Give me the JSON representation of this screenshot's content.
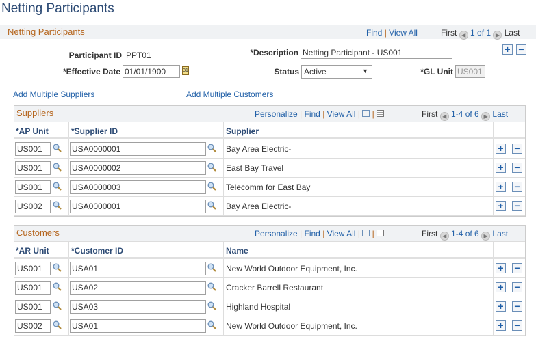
{
  "page_title": "Netting Participants",
  "header": {
    "section": "Netting Participants",
    "find": "Find",
    "view_all": "View All",
    "first": "First",
    "count": "1 of 1",
    "last": "Last"
  },
  "form": {
    "participant_id_label": "Participant ID",
    "participant_id": "PPT01",
    "description_label": "*Description",
    "description": "Netting Participant - US001",
    "effective_date_label": "*Effective Date",
    "effective_date": "01/01/1900",
    "status_label": "Status",
    "status": "Active",
    "gl_unit_label": "*GL Unit",
    "gl_unit": "US001"
  },
  "links": {
    "add_suppliers": "Add Multiple Suppliers",
    "add_customers": "Add Multiple Customers"
  },
  "suppliers": {
    "title": "Suppliers",
    "personalize": "Personalize",
    "find": "Find",
    "view_all": "View All",
    "first": "First",
    "count": "1-4 of 6",
    "last": "Last",
    "columns": [
      "*AP Unit",
      "*Supplier ID",
      "Supplier"
    ],
    "rows": [
      [
        "US001",
        "USA0000001",
        "Bay Area Electric-"
      ],
      [
        "US001",
        "USA0000002",
        "East Bay Travel"
      ],
      [
        "US001",
        "USA0000003",
        "Telecomm for East Bay"
      ],
      [
        "US002",
        "USA0000001",
        "Bay Area Electric-"
      ]
    ]
  },
  "customers": {
    "title": "Customers",
    "personalize": "Personalize",
    "find": "Find",
    "view_all": "View All",
    "first": "First",
    "count": "1-4 of 6",
    "last": "Last",
    "columns": [
      "*AR Unit",
      "*Customer ID",
      "Name"
    ],
    "rows": [
      [
        "US001",
        "USA01",
        "New World Outdoor Equipment, Inc."
      ],
      [
        "US001",
        "USA02",
        "Cracker Barrell Restaurant"
      ],
      [
        "US001",
        "USA03",
        "Highland Hospital"
      ],
      [
        "US002",
        "USA01",
        "New World Outdoor Equipment, Inc."
      ]
    ]
  }
}
